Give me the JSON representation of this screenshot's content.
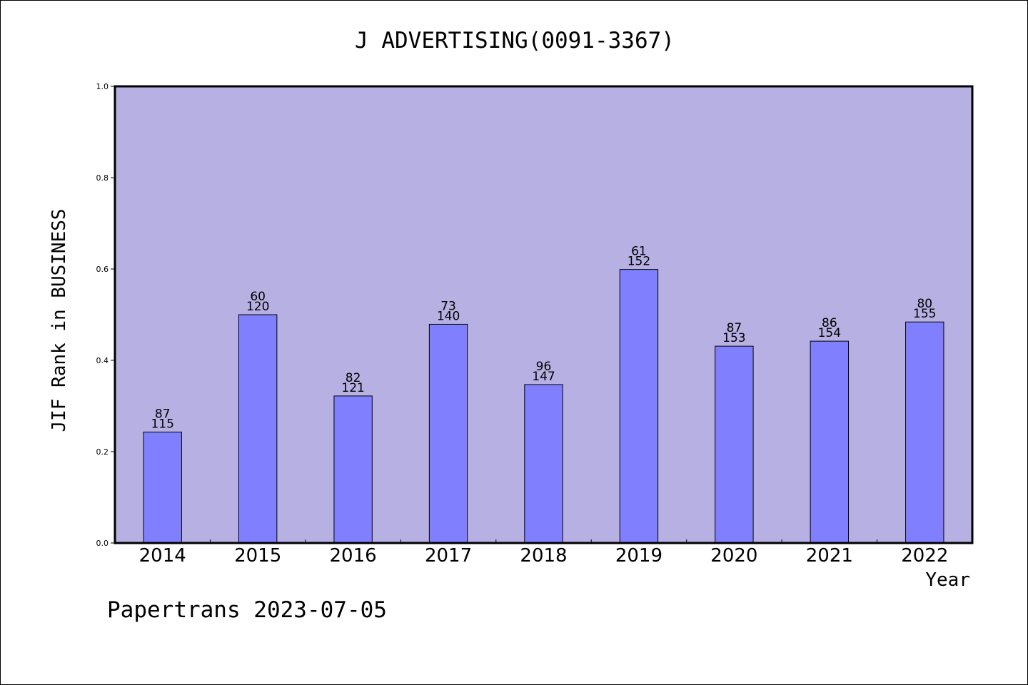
{
  "chart_data": {
    "type": "bar",
    "title": "J ADVERTISING(0091-3367)",
    "xlabel": "Year",
    "ylabel": "JIF Rank in BUSINESS",
    "ylim": [
      0,
      1.0
    ],
    "yticks": [
      "0.0",
      "0.2",
      "0.4",
      "0.6",
      "0.8",
      "1.0"
    ],
    "grid": false,
    "categories": [
      "2014",
      "2015",
      "2016",
      "2017",
      "2018",
      "2019",
      "2020",
      "2021",
      "2022"
    ],
    "values": [
      0.243,
      0.5,
      0.322,
      0.479,
      0.347,
      0.599,
      0.431,
      0.442,
      0.484
    ],
    "rank": [
      "87",
      "60",
      "82",
      "73",
      "96",
      "61",
      "87",
      "86",
      "80"
    ],
    "total": [
      "115",
      "120",
      "121",
      "140",
      "147",
      "152",
      "153",
      "154",
      "155"
    ],
    "colors": {
      "plot_bg": "#b6b1e2",
      "bar": "#8080ff"
    }
  },
  "footer": "Papertrans 2023-07-05"
}
